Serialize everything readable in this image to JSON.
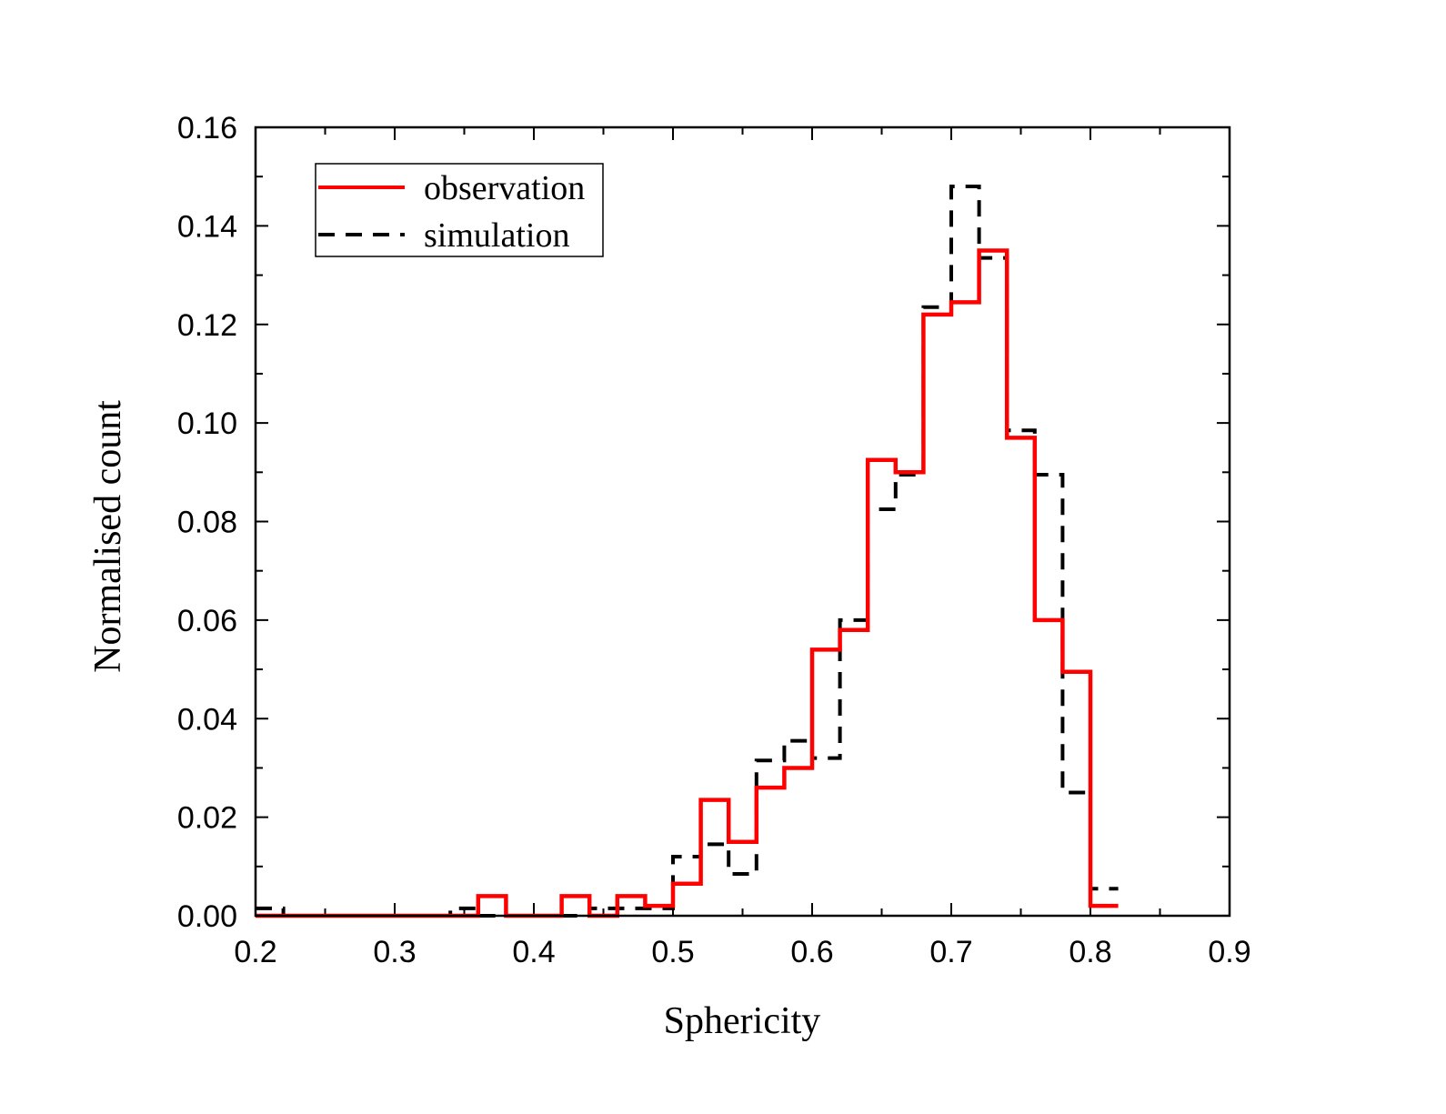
{
  "chart_data": {
    "type": "histogram-step",
    "title": "",
    "xlabel": "Sphericity",
    "ylabel": "Normalised count",
    "xlim": [
      0.2,
      0.9
    ],
    "ylim": [
      0.0,
      0.16
    ],
    "xticks": [
      "0.2",
      "0.3",
      "0.4",
      "0.5",
      "0.6",
      "0.7",
      "0.8",
      "0.9"
    ],
    "yticks": [
      "0.00",
      "0.02",
      "0.04",
      "0.06",
      "0.08",
      "0.10",
      "0.12",
      "0.14",
      "0.16"
    ],
    "bin_width": 0.02,
    "legend_position": "top-left",
    "grid": false,
    "series": [
      {
        "name": "observation",
        "color": "#ff0000",
        "style": "solid",
        "bin_starts": [
          0.2,
          0.22,
          0.24,
          0.26,
          0.28,
          0.3,
          0.32,
          0.34,
          0.36,
          0.38,
          0.4,
          0.42,
          0.44,
          0.46,
          0.48,
          0.5,
          0.52,
          0.54,
          0.56,
          0.58,
          0.6,
          0.62,
          0.64,
          0.66,
          0.68,
          0.7,
          0.72,
          0.74,
          0.76,
          0.78,
          0.8
        ],
        "values": [
          0,
          0,
          0,
          0,
          0,
          0,
          0,
          0,
          0.004,
          0,
          0,
          0.004,
          0,
          0.004,
          0.002,
          0.0065,
          0.0235,
          0.015,
          0.026,
          0.03,
          0.054,
          0.058,
          0.0925,
          0.09,
          0.122,
          0.1245,
          0.135,
          0.097,
          0.06,
          0.0495,
          0.002
        ]
      },
      {
        "name": "simulation",
        "color": "#000000",
        "style": "dashed",
        "bin_starts": [
          0.2,
          0.22,
          0.24,
          0.26,
          0.28,
          0.3,
          0.32,
          0.34,
          0.36,
          0.38,
          0.4,
          0.42,
          0.44,
          0.46,
          0.48,
          0.5,
          0.52,
          0.54,
          0.56,
          0.58,
          0.6,
          0.62,
          0.64,
          0.66,
          0.68,
          0.7,
          0.72,
          0.74,
          0.76,
          0.78,
          0.8
        ],
        "values": [
          0.0015,
          0,
          0,
          0,
          0,
          0,
          0,
          0.0015,
          0,
          0,
          0,
          0,
          0.0015,
          0.0015,
          0.0015,
          0.012,
          0.0145,
          0.0085,
          0.0315,
          0.0355,
          0.032,
          0.06,
          0.0825,
          0.0895,
          0.1235,
          0.148,
          0.1335,
          0.0985,
          0.0895,
          0.025,
          0.0055
        ]
      }
    ]
  }
}
